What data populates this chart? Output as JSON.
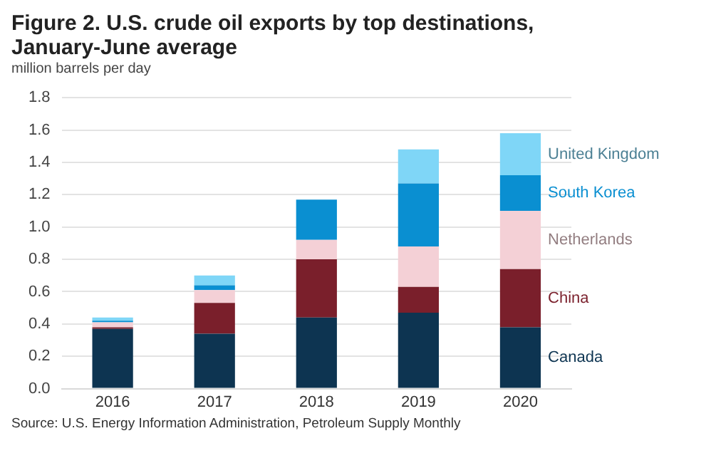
{
  "chart_data": {
    "type": "bar",
    "title": "Figure 2. U.S. crude oil exports by top destinations, January-June average",
    "ylabel": "million barrels per day",
    "categories": [
      "2016",
      "2017",
      "2018",
      "2019",
      "2020"
    ],
    "stacked": true,
    "grid": "y",
    "series": [
      {
        "name": "Canada",
        "color": "#0d3451",
        "values": [
          0.37,
          0.34,
          0.44,
          0.47,
          0.38
        ]
      },
      {
        "name": "China",
        "color": "#7a1f2b",
        "values": [
          0.01,
          0.19,
          0.36,
          0.16,
          0.36
        ]
      },
      {
        "name": "Netherlands",
        "color": "#f4d0d6",
        "values": [
          0.03,
          0.08,
          0.12,
          0.25,
          0.36
        ]
      },
      {
        "name": "South Korea",
        "color": "#0a8fd1",
        "values": [
          0.01,
          0.03,
          0.25,
          0.39,
          0.22
        ]
      },
      {
        "name": "United Kingdom",
        "color": "#7fd6f7",
        "values": [
          0.02,
          0.06,
          0,
          0.21,
          0.26
        ]
      }
    ],
    "ylim": [
      0,
      1.8
    ],
    "yticks": [
      {
        "value": 0,
        "label": "0.0"
      },
      {
        "value": 0.2,
        "label": "0.2"
      },
      {
        "value": 0.4,
        "label": "0.4"
      },
      {
        "value": 0.6,
        "label": "0.6"
      },
      {
        "value": 0.8,
        "label": "0.8"
      },
      {
        "value": 1,
        "label": "1.0"
      },
      {
        "value": 1.2,
        "label": "1.2"
      },
      {
        "value": 1.4,
        "label": "1.4"
      },
      {
        "value": 1.6,
        "label": "1.6"
      },
      {
        "value": 1.8,
        "label": "1.8"
      }
    ],
    "annotations": [
      "Source: U.S. Energy Information Administration, Petroleum Supply Monthly"
    ]
  }
}
